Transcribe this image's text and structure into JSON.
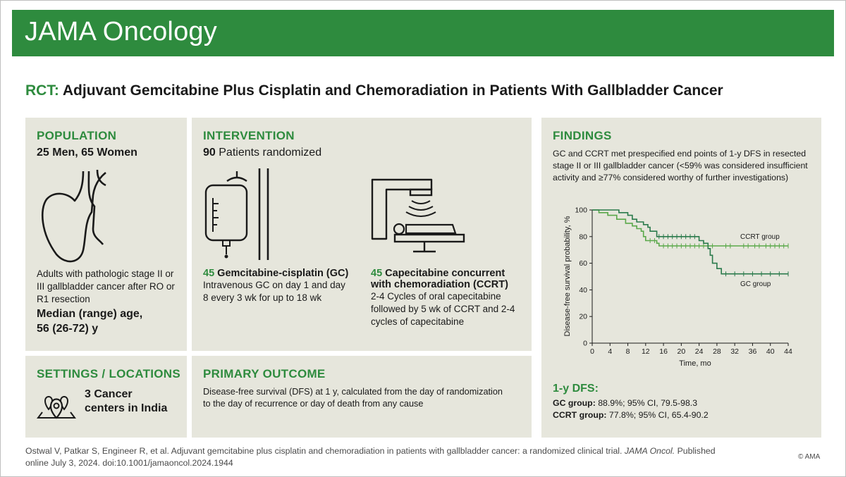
{
  "journal": "JAMA Oncology",
  "title": {
    "prefix": "RCT:",
    "text": " Adjuvant Gemcitabine Plus Cisplatin and Chemoradiation in Patients With Gallbladder Cancer"
  },
  "population": {
    "heading": "POPULATION",
    "counts": "25 Men, 65 Women",
    "description": [
      "Adults with pathologic stage II or",
      "III gallbladder cancer after RO or",
      "R1 resection"
    ],
    "age_label": [
      "Median (range) age,",
      "56 (26-72) y"
    ]
  },
  "intervention": {
    "heading": "INTERVENTION",
    "randomized_number": "90",
    "randomized_text": " Patients randomized",
    "gc": {
      "number": "45",
      "label": " Gemcitabine-cisplatin (GC)",
      "lines": [
        "Intravenous GC on day 1 and day",
        "8 every 3 wk for up to 18 wk"
      ]
    },
    "ccrt": {
      "number": "45",
      "label": " Capecitabine concurrent",
      "label2": "with chemoradiation (CCRT)",
      "lines": [
        "2-4 Cycles of oral capecitabine",
        "followed by 5 wk of CCRT and 2-4",
        "cycles of capecitabine"
      ]
    }
  },
  "settings": {
    "heading": "SETTINGS / LOCATIONS",
    "lines": [
      "3 Cancer",
      "centers in India"
    ],
    "icon": "map-pins-icon"
  },
  "primary_outcome": {
    "heading": "PRIMARY OUTCOME",
    "lines": [
      "Disease-free survival (DFS) at 1 y, calculated from the day of randomization",
      "to the day of recurrence or day of death from any cause"
    ]
  },
  "findings": {
    "heading": "FINDINGS",
    "lines": [
      "GC and CCRT met prespecified end points of 1-y DFS in resected",
      "stage II or III gallbladder cancer (<59% was considered insufficient",
      "activity and ≥77% considered worthy of further investigations)"
    ],
    "dfs_heading": "1-y DFS:",
    "gc_result": {
      "label": "GC group:",
      "text": " 88.9%; 95% CI, 79.5-98.3"
    },
    "ccrt_result": {
      "label": "CCRT group:",
      "text": " 77.8%; 95% CI, 65.4-90.2"
    }
  },
  "chart_data": {
    "type": "line",
    "xlabel": "Time, mo",
    "ylabel": "Disease-free survival probability, %",
    "xlim": [
      0,
      44
    ],
    "ylim": [
      0,
      100
    ],
    "xticks": [
      0,
      4,
      8,
      12,
      16,
      20,
      24,
      28,
      32,
      36,
      40,
      44
    ],
    "yticks": [
      0,
      20,
      40,
      60,
      80,
      100
    ],
    "step": true,
    "series": [
      {
        "name": "CCRT group",
        "color": "#5aa84a",
        "points": [
          [
            0,
            100
          ],
          [
            1.5,
            100
          ],
          [
            1.5,
            98
          ],
          [
            3.5,
            98
          ],
          [
            3.5,
            96
          ],
          [
            5.5,
            96
          ],
          [
            5.5,
            93
          ],
          [
            7.5,
            93
          ],
          [
            7.5,
            90
          ],
          [
            9,
            90
          ],
          [
            9,
            88
          ],
          [
            10,
            88
          ],
          [
            10,
            86
          ],
          [
            11,
            86
          ],
          [
            11,
            84
          ],
          [
            11.5,
            84
          ],
          [
            11.5,
            80
          ],
          [
            12,
            80
          ],
          [
            12,
            77
          ],
          [
            14.5,
            77
          ],
          [
            14.5,
            75
          ],
          [
            15,
            75
          ],
          [
            15,
            73
          ],
          [
            44,
            73
          ]
        ],
        "censored": [
          [
            13,
            77
          ],
          [
            14,
            77
          ],
          [
            16,
            73
          ],
          [
            17,
            73
          ],
          [
            18,
            73
          ],
          [
            19,
            73
          ],
          [
            20,
            73
          ],
          [
            21,
            73
          ],
          [
            22,
            73
          ],
          [
            23,
            73
          ],
          [
            24,
            73
          ],
          [
            25,
            73
          ],
          [
            26,
            73
          ],
          [
            27,
            73
          ],
          [
            30,
            73
          ],
          [
            31,
            73
          ],
          [
            34,
            73
          ],
          [
            35,
            73
          ],
          [
            36.5,
            73
          ],
          [
            37.5,
            73
          ],
          [
            39,
            73
          ],
          [
            40,
            73
          ],
          [
            41,
            73
          ],
          [
            42,
            73
          ],
          [
            43,
            73
          ],
          [
            44,
            73
          ]
        ]
      },
      {
        "name": "GC group",
        "color": "#2a7a4b",
        "points": [
          [
            0,
            100
          ],
          [
            6,
            100
          ],
          [
            6,
            98
          ],
          [
            8,
            98
          ],
          [
            8,
            96
          ],
          [
            9,
            96
          ],
          [
            9,
            93
          ],
          [
            10,
            93
          ],
          [
            10,
            91
          ],
          [
            11.5,
            91
          ],
          [
            11.5,
            89
          ],
          [
            12.5,
            89
          ],
          [
            12.5,
            87
          ],
          [
            13,
            87
          ],
          [
            13,
            84
          ],
          [
            14.5,
            84
          ],
          [
            14.5,
            80
          ],
          [
            24,
            80
          ],
          [
            24,
            77
          ],
          [
            25,
            77
          ],
          [
            25,
            75
          ],
          [
            26,
            75
          ],
          [
            26,
            71
          ],
          [
            26.5,
            71
          ],
          [
            26.5,
            66
          ],
          [
            27,
            66
          ],
          [
            27,
            60
          ],
          [
            28,
            60
          ],
          [
            28,
            56
          ],
          [
            29,
            56
          ],
          [
            29,
            52
          ],
          [
            44,
            52
          ]
        ],
        "censored": [
          [
            15,
            80
          ],
          [
            16,
            80
          ],
          [
            17,
            80
          ],
          [
            18,
            80
          ],
          [
            19,
            80
          ],
          [
            20,
            80
          ],
          [
            21,
            80
          ],
          [
            22,
            80
          ],
          [
            23,
            80
          ],
          [
            30,
            52
          ],
          [
            32,
            52
          ],
          [
            34,
            52
          ],
          [
            36,
            52
          ],
          [
            38,
            52
          ],
          [
            40,
            52
          ],
          [
            42,
            52
          ],
          [
            44,
            52
          ]
        ]
      }
    ]
  },
  "citation": {
    "before": "Ostwal V, Patkar S, Engineer R, et al. Adjuvant gemcitabine plus cisplatin and chemoradiation in patients with gallbladder cancer: a randomized clinical trial. ",
    "journal_italic": "JAMA Oncol.",
    "after": " Published online July 3, 2024. doi:10.1001/jamaoncol.2024.1944"
  },
  "copyright": "© AMA"
}
